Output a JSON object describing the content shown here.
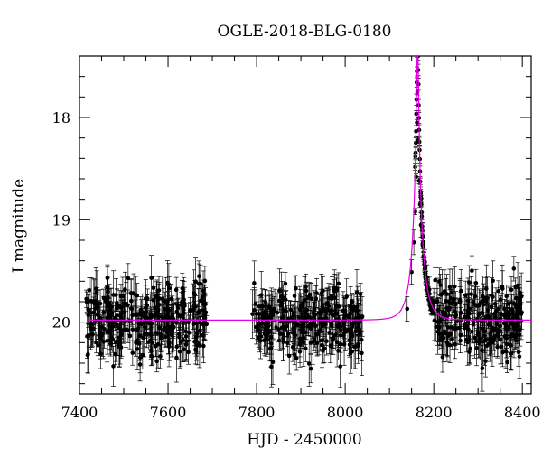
{
  "chart_data": {
    "type": "scatter",
    "title": "OGLE-2018-BLG-0180",
    "xlabel": "HJD - 2450000",
    "ylabel": "I magnitude",
    "xlim": [
      7400,
      8420
    ],
    "ylim": [
      20.7,
      17.4
    ],
    "y_inverted": true,
    "x_ticks": [
      7400,
      7600,
      7800,
      8000,
      8200,
      8400
    ],
    "y_ticks": [
      18,
      19,
      20
    ],
    "x_tick_labels": [
      "7400",
      "7600",
      "7800",
      "8000",
      "8200",
      "8400"
    ],
    "y_tick_labels": [
      "18",
      "19",
      "20"
    ],
    "grid": false,
    "series": [
      {
        "kind": "observations",
        "color": "#000000",
        "baseline_mag": 19.98,
        "scatter_sigma": 0.17,
        "season_ranges": [
          [
            7415,
            7690
          ],
          [
            7790,
            8040
          ],
          [
            8150,
            8400
          ]
        ],
        "points": [
          [
            7420,
            19.93
          ],
          [
            7430,
            20.12
          ],
          [
            7440,
            19.85
          ],
          [
            7450,
            20.05
          ],
          [
            7460,
            19.78
          ],
          [
            7470,
            20.21
          ],
          [
            7480,
            19.96
          ],
          [
            7490,
            20.15
          ],
          [
            7500,
            19.82
          ],
          [
            7510,
            20.08
          ],
          [
            7520,
            20.3
          ],
          [
            7530,
            19.74
          ],
          [
            7540,
            20.02
          ],
          [
            7550,
            19.9
          ],
          [
            7560,
            20.18
          ],
          [
            7570,
            19.86
          ],
          [
            7580,
            20.11
          ],
          [
            7590,
            19.79
          ],
          [
            7600,
            20.06
          ],
          [
            7610,
            19.95
          ],
          [
            7620,
            20.24
          ],
          [
            7630,
            19.83
          ],
          [
            7640,
            20.09
          ],
          [
            7650,
            19.88
          ],
          [
            7660,
            20.19
          ],
          [
            7670,
            19.55
          ],
          [
            7680,
            20.02
          ],
          [
            7800,
            19.92
          ],
          [
            7810,
            20.14
          ],
          [
            7820,
            19.8
          ],
          [
            7830,
            20.26
          ],
          [
            7840,
            19.87
          ],
          [
            7850,
            20.07
          ],
          [
            7860,
            19.76
          ],
          [
            7870,
            20.2
          ],
          [
            7880,
            19.96
          ],
          [
            7890,
            20.35
          ],
          [
            7900,
            19.84
          ],
          [
            7910,
            20.1
          ],
          [
            7920,
            19.73
          ],
          [
            7930,
            20.16
          ],
          [
            7940,
            19.91
          ],
          [
            7950,
            20.28
          ],
          [
            7960,
            19.81
          ],
          [
            7970,
            20.04
          ],
          [
            7980,
            19.69
          ],
          [
            7990,
            20.13
          ],
          [
            8000,
            19.89
          ],
          [
            8010,
            20.22
          ],
          [
            8020,
            19.85
          ],
          [
            8030,
            20.01
          ],
          [
            8140,
            19.87
          ],
          [
            8150,
            19.51
          ],
          [
            8155,
            19.22
          ],
          [
            8158,
            18.92
          ],
          [
            8160,
            18.58
          ],
          [
            8162,
            18.05
          ],
          [
            8163,
            17.75
          ],
          [
            8165,
            18.22
          ],
          [
            8167,
            18.62
          ],
          [
            8169,
            18.85
          ],
          [
            8171,
            19.05
          ],
          [
            8175,
            19.25
          ],
          [
            8180,
            19.41
          ],
          [
            8185,
            19.56
          ],
          [
            8190,
            19.68
          ],
          [
            8200,
            19.79
          ],
          [
            8210,
            19.88
          ],
          [
            8220,
            20.12
          ],
          [
            8230,
            19.86
          ],
          [
            8240,
            20.05
          ],
          [
            8250,
            19.82
          ],
          [
            8260,
            20.18
          ],
          [
            8270,
            19.95
          ],
          [
            8280,
            20.29
          ],
          [
            8290,
            19.8
          ],
          [
            8300,
            20.1
          ],
          [
            8310,
            19.91
          ],
          [
            8320,
            20.23
          ],
          [
            8330,
            19.85
          ],
          [
            8340,
            20.07
          ],
          [
            8350,
            19.78
          ],
          [
            8360,
            20.14
          ],
          [
            8370,
            19.94
          ],
          [
            8380,
            20.03
          ],
          [
            8390,
            19.89
          ]
        ]
      },
      {
        "kind": "model",
        "color": "#e600e6",
        "t0": 8163.5,
        "u0": 0.082,
        "tE": 22,
        "baseline_mag": 19.98,
        "x_start": 7420,
        "x_end": 8420
      }
    ]
  }
}
